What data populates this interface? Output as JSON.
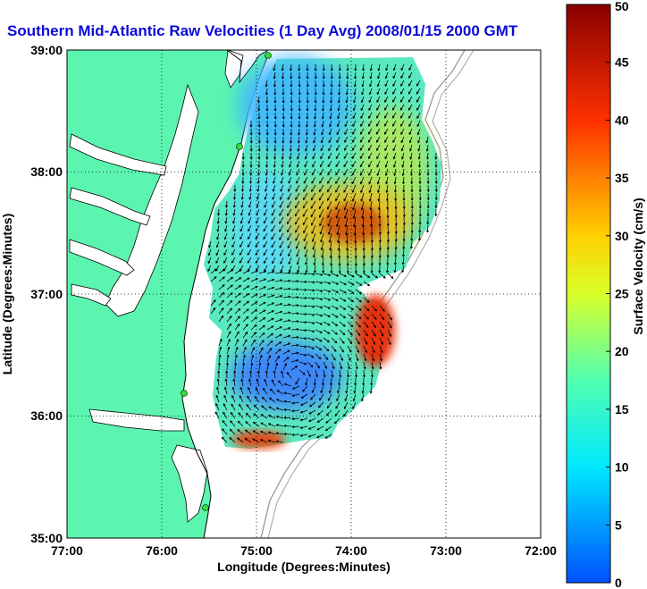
{
  "title": "Southern Mid-Atlantic Raw Velocities (1 Day Avg) 2008/01/15 2000 GMT",
  "colors": {
    "title": "#0b0bd8",
    "land": "#5cf5b0",
    "stations": "#33dd33"
  },
  "chart_data": {
    "type": "heatmap",
    "title": "Southern Mid-Atlantic Raw Velocities (1 Day Avg) 2008/01/15 2000 GMT",
    "xlabel": "Longitude (Degrees:Minutes)",
    "ylabel": "Latitude (Degrees:Minutes)",
    "xlim": [
      -77,
      -72
    ],
    "ylim": [
      35,
      39
    ],
    "x_ticks": [
      "77:00",
      "76:00",
      "75:00",
      "74:00",
      "73:00",
      "72:00"
    ],
    "y_ticks": [
      "39:00",
      "38:00",
      "37:00",
      "36:00",
      "35:00"
    ],
    "grid": true,
    "colorbar": {
      "label": "Surface Velocity (cm/s)",
      "min": 0,
      "max": 50,
      "ticks": [
        "0",
        "5",
        "10",
        "15",
        "20",
        "25",
        "30",
        "35",
        "40",
        "45",
        "50"
      ]
    },
    "velocity_maxima": [
      {
        "lon": -74.1,
        "lat": 37.55,
        "speed": 36
      },
      {
        "lon": -73.9,
        "lat": 36.7,
        "speed": 44
      },
      {
        "lon": -75.3,
        "lat": 35.8,
        "speed": 38
      }
    ],
    "velocity_minima": [
      {
        "lon": -75.0,
        "lat": 38.6,
        "speed": 9
      },
      {
        "lon": -74.8,
        "lat": 36.3,
        "speed": 6
      }
    ],
    "stations": [
      {
        "lon": -74.9,
        "lat": 39.0
      },
      {
        "lon": -75.15,
        "lat": 38.2
      },
      {
        "lon": -75.68,
        "lat": 36.18
      },
      {
        "lon": -75.5,
        "lat": 35.25
      }
    ]
  }
}
